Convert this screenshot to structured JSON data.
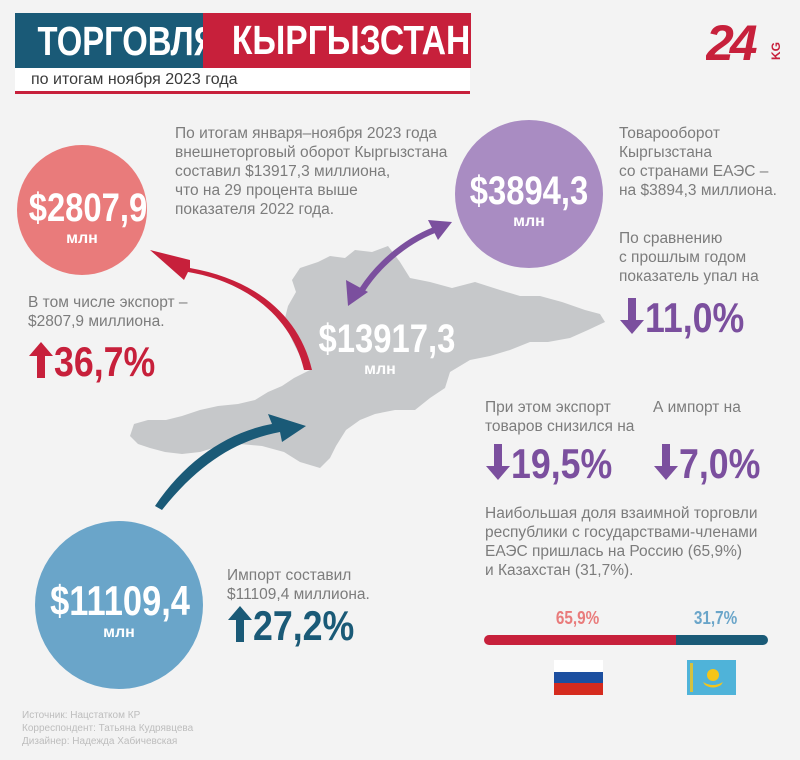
{
  "header": {
    "title_left": "ТОРГОВЛЯ",
    "title_right": "КЫРГЫЗСТАНА",
    "subtitle": "по итогам ноября 2023 года",
    "logo_number": "24",
    "logo_suffix": "KG"
  },
  "colors": {
    "blue": "#1a5a77",
    "red": "#c7203b",
    "pink": "#e97b7b",
    "purple": "#a98cc2",
    "light_blue": "#6aa5c9",
    "map_gray": "#c6c8ca"
  },
  "center": {
    "value": "$13917,3",
    "unit": "млн",
    "text": "По итогам января–ноября 2023 года\nвнешнеторговый оборот Кыргызстана\nсоставил $13917,3 миллиона,\nчто на 29 процента выше\nпоказателя 2022 года."
  },
  "export": {
    "value": "$2807,9",
    "unit": "млн",
    "text": "В том числе экспорт –\n$2807,9 миллиона.",
    "change": "36,7%",
    "direction": "up"
  },
  "eaeu": {
    "value": "$3894,3",
    "unit": "млн",
    "text": "Товарооборот\nКыргызстана\nсо странами ЕАЭС –\nна $3894,3 миллиона.",
    "compare_text": "По сравнению\nс прошлым годом\nпоказатель упал на",
    "change": "11,0%",
    "direction": "down",
    "export_text": "При этом экспорт\nтоваров снизился на",
    "export_change": "19,5%",
    "import_text": "А импорт на",
    "import_change": "7,0%",
    "share_text": "Наибольшая доля взаимной торговли\nреспублики с государствами-членами\nЕАЭС пришлась на Россию (65,9%)\nи Казахстан (31,7%).",
    "russia_share_label": "65,9%",
    "kazakhstan_share_label": "31,7%",
    "russia_share": 65.9,
    "kazakhstan_share": 31.7,
    "russia_flag_icon": "russia-flag-icon",
    "kazakhstan_flag_icon": "kazakhstan-flag-icon"
  },
  "import": {
    "value": "$11109,4",
    "unit": "млн",
    "text": "Импорт составил\n$11109,4 миллиона.",
    "change": "27,2%",
    "direction": "up"
  },
  "credits": {
    "text": "Источник: Нацстатком КР\nКорреспондент: Татьяна Кудрявцева\nДизайнер: Надежда Хабичевская"
  }
}
